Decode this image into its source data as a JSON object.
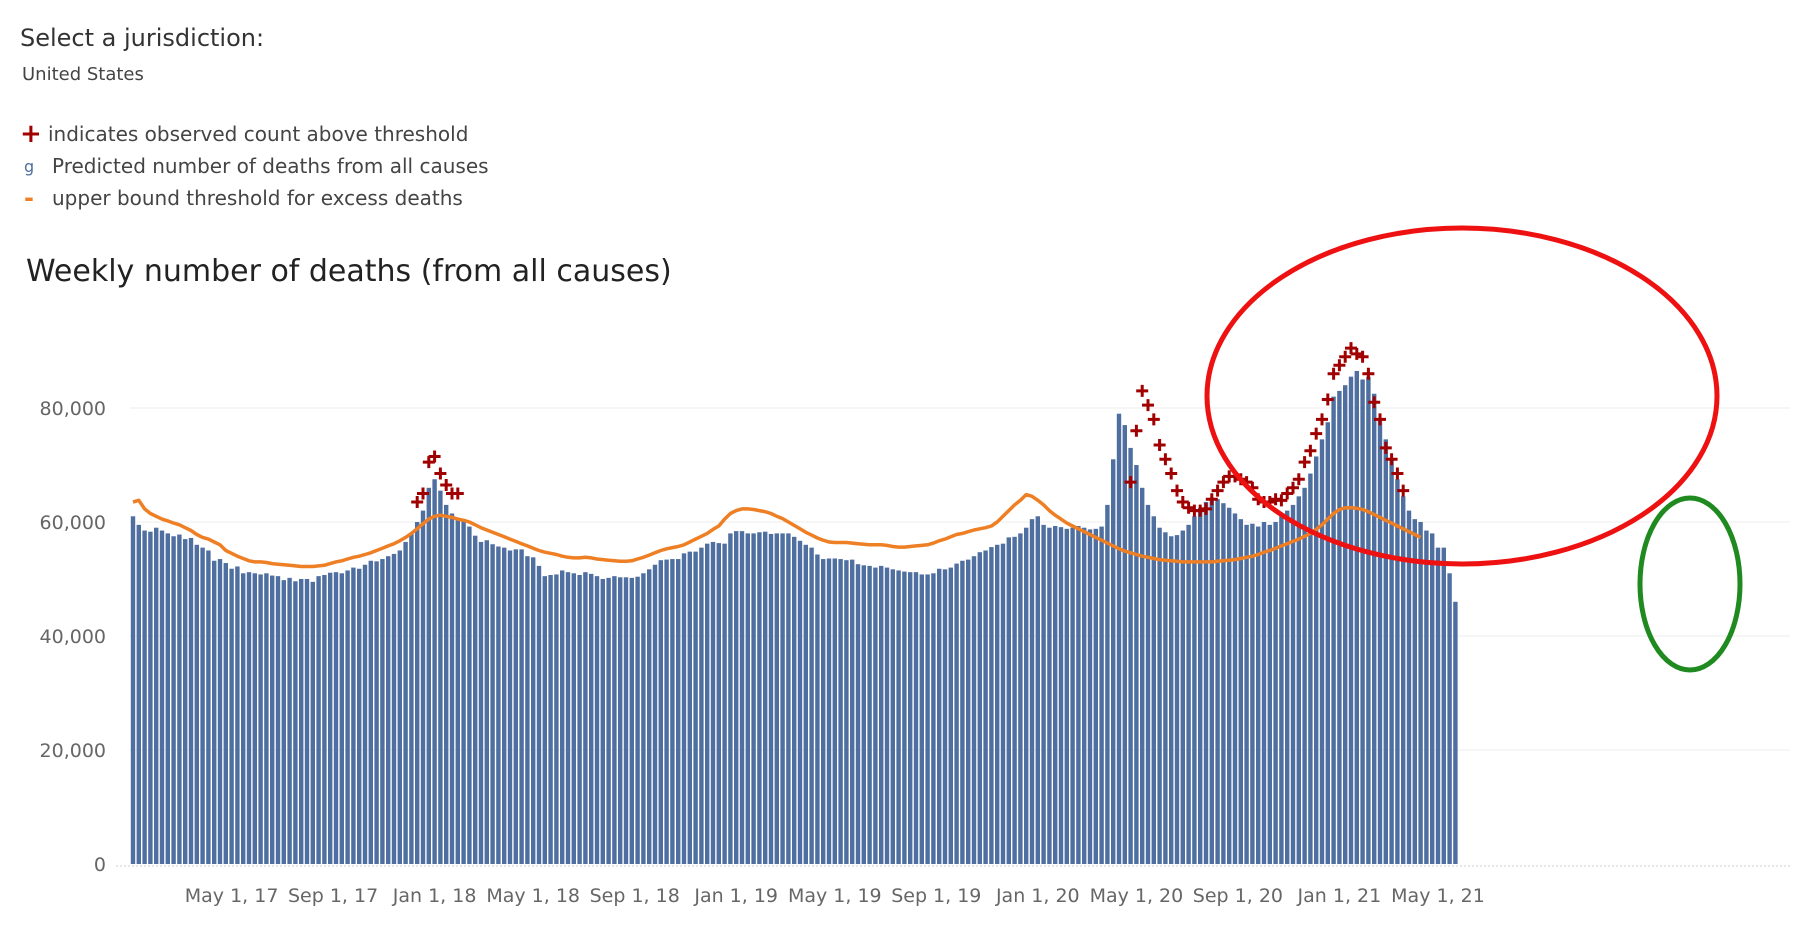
{
  "jurisdiction": {
    "label": "Select a jurisdiction:",
    "value": "United States"
  },
  "legend": [
    {
      "symbol": "+",
      "text": "indicates observed count above threshold",
      "color": "#a00000"
    },
    {
      "symbol": "g",
      "text": "Predicted number of deaths from all causes",
      "color": "#4e6fa0"
    },
    {
      "symbol": "-",
      "text": "upper bound threshold for excess deaths",
      "color": "#ee7f24"
    }
  ],
  "chart_data": {
    "type": "bar",
    "title": "Weekly number of deaths (from all causes)",
    "xlabel": "",
    "ylabel": "",
    "ylim": [
      0,
      92000
    ],
    "yticks": [
      0,
      20000,
      40000,
      60000,
      80000
    ],
    "ytick_labels": [
      "0",
      "20,000",
      "40,000",
      "60,000",
      "80,000"
    ],
    "xtick_labels": [
      {
        "label": "May 1, 17",
        "week": 17
      },
      {
        "label": "Sep 1, 17",
        "week": 34.5
      },
      {
        "label": "Jan 1, 18",
        "week": 52
      },
      {
        "label": "May 1, 18",
        "week": 69
      },
      {
        "label": "Sep 1, 18",
        "week": 86.5
      },
      {
        "label": "Jan 1, 19",
        "week": 104
      },
      {
        "label": "May 1, 19",
        "week": 121
      },
      {
        "label": "Sep 1, 19",
        "week": 138.5
      },
      {
        "label": "Jan 1, 20",
        "week": 156
      },
      {
        "label": "May 1, 20",
        "week": 173
      },
      {
        "label": "Sep 1, 20",
        "week": 190.5
      },
      {
        "label": "Jan 1, 21",
        "week": 208
      },
      {
        "label": "May 1, 21",
        "week": 225
      }
    ],
    "grid": true,
    "bar_color": "#4e6fa0",
    "threshold_color": "#ee7f24",
    "marker_color": "#a00000",
    "annotation_colors": {
      "red_ellipse": "#ee1111",
      "green_ellipse": "#1f8a1f"
    },
    "series": [
      {
        "name": "Predicted number of deaths from all causes",
        "values": [
          61000,
          59500,
          58500,
          58300,
          59000,
          58500,
          58000,
          57500,
          57800,
          57000,
          57200,
          56000,
          55500,
          55000,
          53200,
          53500,
          52800,
          51800,
          52200,
          51000,
          51200,
          51000,
          50800,
          51000,
          50600,
          50500,
          49800,
          50200,
          49600,
          50000,
          50000,
          49500,
          50500,
          50700,
          51100,
          51200,
          51000,
          51500,
          52000,
          51800,
          52500,
          53200,
          53100,
          53500,
          54000,
          54400,
          55000,
          56500,
          58000,
          60000,
          62000,
          66000,
          67500,
          65500,
          63000,
          61500,
          60700,
          60500,
          59200,
          57600,
          56500,
          56800,
          56100,
          55700,
          55500,
          55000,
          55200,
          55200,
          54000,
          53800,
          52300,
          50500,
          50700,
          50800,
          51500,
          51200,
          51000,
          50700,
          51200,
          50900,
          50500,
          50000,
          50200,
          50500,
          50300,
          50300,
          50200,
          50400,
          51000,
          51700,
          52500,
          53300,
          53400,
          53500,
          53500,
          54500,
          54800,
          54800,
          55500,
          56200,
          56500,
          56300,
          56200,
          58000,
          58400,
          58400,
          58000,
          58000,
          58200,
          58300,
          57900,
          58000,
          58000,
          58000,
          57400,
          56700,
          56000,
          55500,
          54300,
          53500,
          53600,
          53600,
          53500,
          53300,
          53400,
          52600,
          52400,
          52300,
          52000,
          52300,
          52000,
          51700,
          51500,
          51300,
          51200,
          51200,
          50800,
          50800,
          51000,
          51800,
          51700,
          52000,
          52700,
          53200,
          53400,
          54000,
          54700,
          55000,
          55600,
          56000,
          56200,
          57300,
          57400,
          58000,
          59000,
          60500,
          61000,
          59500,
          59000,
          59300,
          59100,
          58800,
          59000,
          59300,
          59000,
          58700,
          58800,
          59200,
          63000,
          71000,
          79000,
          77000,
          73000,
          70000,
          66000,
          63000,
          61000,
          59000,
          58200,
          57500,
          57700,
          58500,
          59500,
          61000,
          62500,
          63500,
          64300,
          64000,
          63300,
          62500,
          61500,
          60500,
          59500,
          59700,
          59200,
          60000,
          59500,
          60000,
          61000,
          62000,
          63000,
          64500,
          66000,
          68500,
          71500,
          74500,
          77500,
          82000,
          83000,
          84000,
          85500,
          86500,
          85000,
          85500,
          82500,
          78000,
          74500,
          71000,
          67500,
          64500,
          62000,
          60500,
          60000,
          58500,
          58000,
          55500,
          55500,
          51000,
          46000
        ]
      },
      {
        "name": "upper bound threshold for excess deaths",
        "values": [
          63500,
          63800,
          62300,
          61500,
          61000,
          60500,
          60200,
          59800,
          59500,
          59000,
          58500,
          57800,
          57300,
          57000,
          56500,
          56000,
          55000,
          54500,
          54000,
          53600,
          53200,
          53000,
          53000,
          52900,
          52700,
          52600,
          52500,
          52400,
          52300,
          52200,
          52200,
          52200,
          52300,
          52400,
          52700,
          53000,
          53200,
          53500,
          53800,
          54000,
          54300,
          54600,
          55000,
          55400,
          55800,
          56200,
          56700,
          57300,
          58000,
          58800,
          59700,
          60500,
          61000,
          61200,
          61000,
          60800,
          60500,
          60300,
          60000,
          59500,
          59000,
          58600,
          58200,
          57800,
          57400,
          57000,
          56600,
          56200,
          55800,
          55400,
          55000,
          54700,
          54500,
          54300,
          54000,
          53800,
          53700,
          53700,
          53800,
          53700,
          53500,
          53400,
          53300,
          53200,
          53100,
          53100,
          53200,
          53500,
          53800,
          54200,
          54600,
          55000,
          55300,
          55500,
          55700,
          56000,
          56500,
          57000,
          57500,
          58000,
          58700,
          59300,
          60500,
          61500,
          62000,
          62300,
          62300,
          62200,
          62000,
          61800,
          61500,
          61000,
          60600,
          60000,
          59400,
          58800,
          58200,
          57700,
          57200,
          56800,
          56500,
          56400,
          56400,
          56400,
          56300,
          56200,
          56100,
          56000,
          56000,
          56000,
          55900,
          55700,
          55600,
          55600,
          55700,
          55800,
          55900,
          56000,
          56300,
          56700,
          57000,
          57400,
          57800,
          58000,
          58300,
          58600,
          58800,
          59000,
          59300,
          60000,
          61000,
          62000,
          63000,
          63800,
          64800,
          64500,
          63800,
          63000,
          62000,
          61200,
          60500,
          59800,
          59300,
          58800,
          58300,
          57800,
          57300,
          56800,
          56300,
          55800,
          55300,
          54900,
          54600,
          54300,
          54000,
          53800,
          53600,
          53400,
          53300,
          53200,
          53100,
          53000,
          53000,
          53000,
          53000,
          53000,
          53000,
          53100,
          53200,
          53300,
          53400,
          53600,
          53800,
          54000,
          54300,
          54700,
          55000,
          55400,
          55800,
          56200,
          56600,
          57000,
          57500,
          58000,
          58700,
          59500,
          60500,
          61500,
          62200,
          62500,
          62500,
          62400,
          62200,
          61800,
          61300,
          60800,
          60300,
          59800,
          59300,
          58800,
          58300,
          57800,
          57300
        ]
      }
    ],
    "above_threshold_weeks": [
      49,
      50,
      51,
      52,
      53,
      54,
      55,
      56,
      172,
      173,
      174,
      175,
      176,
      177,
      178,
      179,
      180,
      181,
      182,
      183,
      184,
      185,
      186,
      187,
      188,
      189,
      190,
      191,
      192,
      193,
      194,
      195,
      196,
      197,
      198,
      199,
      200,
      201,
      202,
      203,
      204,
      205,
      206,
      207,
      208,
      209,
      210,
      211,
      212,
      213,
      214,
      215,
      216,
      217,
      218,
      219
    ],
    "above_threshold_values": [
      63500,
      65000,
      70500,
      71500,
      68500,
      66500,
      65000,
      65000,
      67000,
      76000,
      83000,
      80500,
      78000,
      73500,
      71000,
      68500,
      65500,
      63500,
      62500,
      62000,
      62000,
      62300,
      64000,
      65500,
      67000,
      68000,
      68000,
      67500,
      67000,
      66000,
      64000,
      63500,
      63500,
      64000,
      63800,
      65000,
      66000,
      67500,
      70500,
      72500,
      75500,
      78000,
      81500,
      86000,
      87500,
      89000,
      90500,
      89500,
      89000,
      86000,
      81000,
      78000,
      73000,
      71000,
      68500,
      65500
    ]
  }
}
